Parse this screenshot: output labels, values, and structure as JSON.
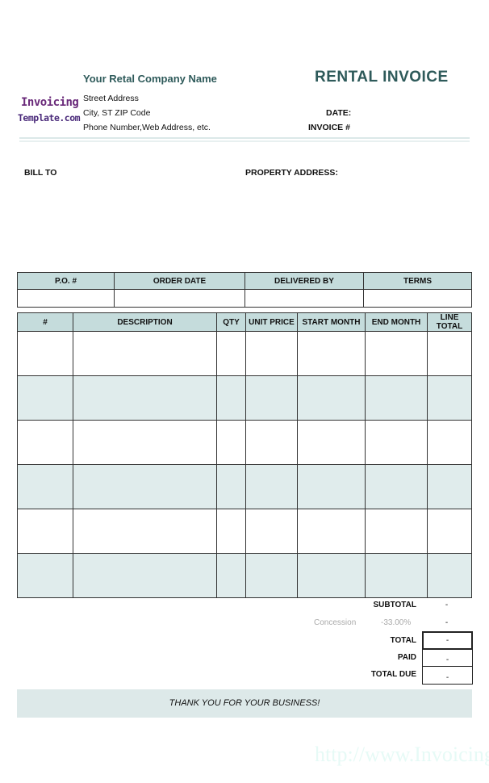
{
  "logo": {
    "line1": "Invoicing",
    "line2": "Template.com"
  },
  "company": {
    "name": "Your Retal Company Name",
    "street": "Street Address",
    "city": "City, ST  ZIP Code",
    "contact": "Phone Number,Web Address, etc."
  },
  "invoice": {
    "title": "RENTAL INVOICE",
    "date_label": "DATE:",
    "number_label": "INVOICE #"
  },
  "bill_to": "BILL TO",
  "property_address": "PROPERTY ADDRESS:",
  "order_table": {
    "headers": [
      "P.O. #",
      "ORDER DATE",
      "DELIVERED BY",
      "TERMS"
    ]
  },
  "items_table": {
    "headers": [
      "#",
      "DESCRIPTION",
      "QTY",
      "UNIT PRICE",
      "START MONTH",
      "END MONTH",
      "LINE TOTAL"
    ],
    "row_count": 6
  },
  "totals": {
    "subtotal_label": "SUBTOTAL",
    "subtotal": "-",
    "concession_label": "Concession",
    "concession_rate": "-33.00%",
    "concession": "-",
    "total_label": "TOTAL",
    "total": "-",
    "paid_label": "PAID",
    "paid": "-",
    "due_label": "TOTAL DUE",
    "due": "-"
  },
  "thanks": "THANK YOU FOR YOUR BUSINESS!",
  "watermark": "http://www.InvoicingTemplate.com",
  "colors": {
    "accent": "#2e5a5a",
    "header_fill": "#c5dcdc",
    "row_shade": "#e0ecec"
  }
}
